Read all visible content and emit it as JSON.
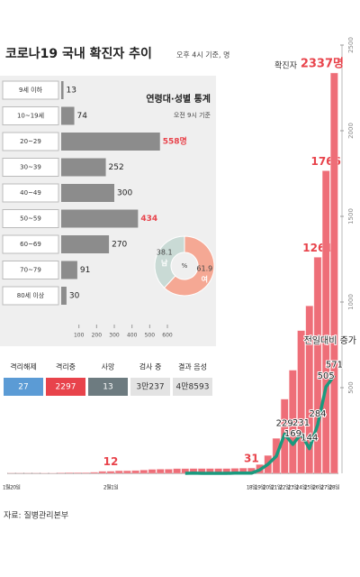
{
  "title": "코로나19 국내 확진자 추이",
  "subtitle": "오후 4시 기준, 명",
  "source": "자료: 질병관리본부",
  "chart_data": [
    {
      "type": "bar",
      "categories": [
        "1월20일",
        null,
        null,
        null,
        null,
        null,
        null,
        null,
        null,
        null,
        null,
        null,
        "2월1일",
        null,
        null,
        null,
        null,
        null,
        null,
        null,
        null,
        null,
        null,
        null,
        null,
        null,
        null,
        null,
        null,
        "18일",
        "19일",
        "20일",
        "21일",
        "22일",
        "23일",
        "24일",
        "25일",
        "26일",
        "27일",
        "28일"
      ],
      "series": [
        {
          "name": "확진자",
          "type": "bar",
          "color": "#ee6e78",
          "values": [
            1,
            1,
            1,
            1,
            2,
            2,
            3,
            4,
            4,
            4,
            6,
            11,
            12,
            15,
            15,
            16,
            19,
            23,
            24,
            24,
            27,
            27,
            28,
            28,
            28,
            28,
            28,
            29,
            30,
            31,
            51,
            104,
            204,
            433,
            602,
            833,
            977,
            1261,
            1766,
            2337
          ],
          "value_labels": [
            null,
            null,
            null,
            null,
            null,
            null,
            null,
            null,
            null,
            null,
            null,
            null,
            "12",
            null,
            null,
            null,
            null,
            null,
            null,
            null,
            null,
            null,
            null,
            null,
            null,
            null,
            null,
            null,
            null,
            "31",
            null,
            null,
            null,
            null,
            null,
            null,
            null,
            "1261",
            "1766",
            "2337명"
          ]
        },
        {
          "name": "전일대비 증가",
          "type": "line",
          "color": "#1a9a7e",
          "values": [
            null,
            null,
            null,
            null,
            null,
            null,
            null,
            null,
            null,
            null,
            null,
            null,
            null,
            null,
            null,
            null,
            null,
            null,
            null,
            null,
            null,
            0,
            1,
            0,
            0,
            0,
            0,
            1,
            1,
            1,
            20,
            53,
            100,
            229,
            169,
            231,
            144,
            284,
            505,
            571
          ],
          "value_labels": [
            null,
            null,
            null,
            null,
            null,
            null,
            null,
            null,
            null,
            null,
            null,
            null,
            null,
            null,
            null,
            null,
            null,
            null,
            null,
            null,
            null,
            null,
            null,
            null,
            null,
            null,
            null,
            null,
            null,
            null,
            null,
            null,
            null,
            "229",
            "169",
            "231",
            "144",
            "284",
            "505",
            "571"
          ]
        }
      ],
      "ylim": [
        0,
        2500
      ],
      "yticks": [
        500,
        1000,
        1500,
        2000,
        2500
      ]
    },
    {
      "type": "hbar",
      "title": "연령대·성별 통계",
      "subtitle": "오전 9시 기준",
      "categories": [
        "9세 이하",
        "10~19세",
        "20~29",
        "30~39",
        "40~49",
        "50~59",
        "60~69",
        "70~79",
        "80세 이상"
      ],
      "values": [
        13,
        74,
        558,
        252,
        300,
        434,
        270,
        91,
        30
      ],
      "value_labels": [
        null,
        null,
        "558명",
        null,
        null,
        null,
        null,
        null,
        null
      ],
      "value_label_colors": [
        "#222",
        "#222",
        "#e8434b",
        "#222",
        "#222",
        "#e8434b",
        "#222",
        "#222",
        "#222"
      ],
      "color": "#8c8c8c",
      "xlim": [
        0,
        600
      ],
      "xticks": [
        100,
        200,
        300,
        400,
        500,
        600
      ]
    },
    {
      "type": "pie",
      "labels": [
        "남",
        "여"
      ],
      "values": [
        38.1,
        61.9
      ],
      "colors": [
        "#c9dad5",
        "#f5a894"
      ],
      "center_label": "%"
    }
  ],
  "stats": [
    {
      "label": "격리해제",
      "value": "27",
      "color": "#5b9bd5"
    },
    {
      "label": "격리중",
      "value": "2297",
      "color": "#e8434b"
    },
    {
      "label": "사망",
      "value": "13",
      "color": "#6d7b80"
    },
    {
      "label": "검사 중",
      "value": "3만237",
      "color": "#e3e3e3"
    },
    {
      "label": "결과 음성",
      "value": "4만8593",
      "color": "#e3e3e3"
    }
  ]
}
